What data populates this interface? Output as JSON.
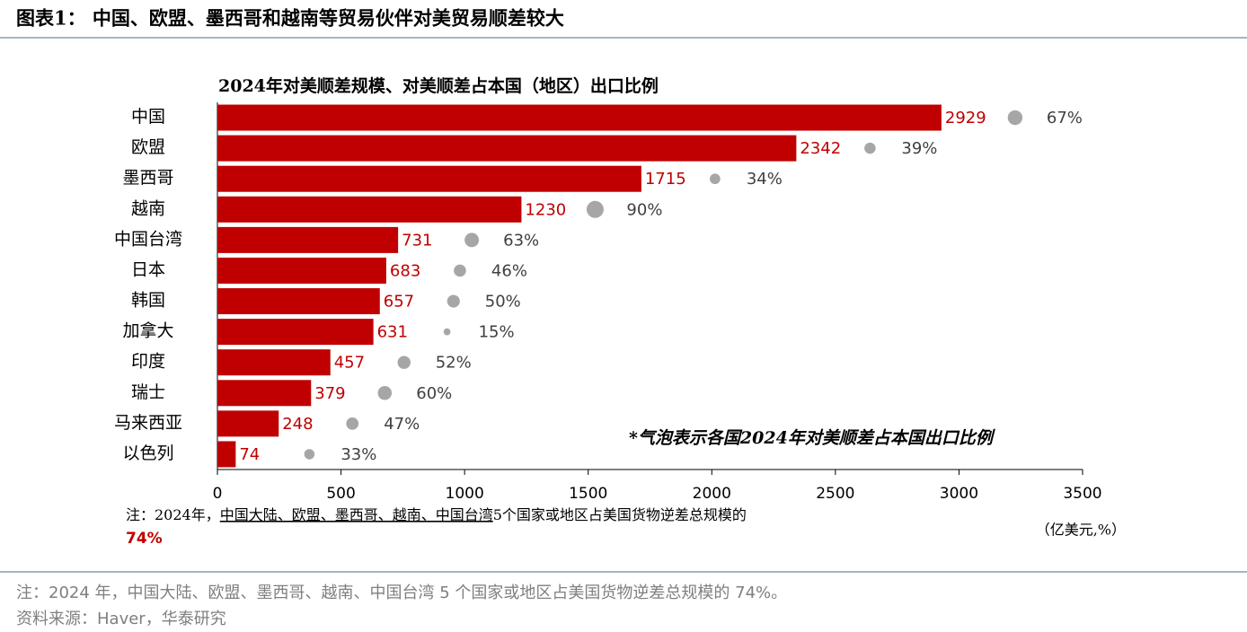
{
  "figure_title": "图表1：  中国、欧盟、墨西哥和越南等贸易伙伴对美贸易顺差较大",
  "chart_data": {
    "type": "bar",
    "title": "2024年对美顺差规模、对美顺差占本国（地区）出口比例",
    "categories": [
      "中国",
      "欧盟",
      "墨西哥",
      "越南",
      "中国台湾",
      "日本",
      "韩国",
      "加拿大",
      "印度",
      "瑞士",
      "马来西亚",
      "以色列"
    ],
    "values": [
      2929,
      2342,
      1715,
      1230,
      731,
      683,
      657,
      631,
      457,
      379,
      248,
      74
    ],
    "color": "#c00000",
    "share": {
      "values": [
        67,
        39,
        34,
        90,
        63,
        46,
        50,
        15,
        52,
        60,
        47,
        33
      ],
      "value_labels": [
        "67%",
        "39%",
        "34%",
        "90%",
        "63%",
        "46%",
        "50%",
        "15%",
        "52%",
        "60%",
        "47%",
        "33%"
      ],
      "color": "#a6a6a6"
    },
    "xlim": [
      0,
      3500
    ],
    "xticks": [
      0,
      500,
      1000,
      1500,
      2000,
      2500,
      3000,
      3500
    ],
    "annotation": "*气泡表示各国2024年对美顺差占本国出口比例",
    "unit": "（亿美元,%）",
    "note_prefix": "注：2024年，",
    "note_underlined": "中国大陆、欧盟、墨西哥、越南、中国台湾",
    "note_suffix": "5个国家或地区占美国货物逆差总规模的",
    "note_highlight": "74%"
  },
  "footer": {
    "note": "注：2024 年，中国大陆、欧盟、墨西哥、越南、中国台湾 5 个国家或地区占美国货物逆差总规模的 74%。",
    "source": "资料来源：Haver，华泰研究"
  }
}
